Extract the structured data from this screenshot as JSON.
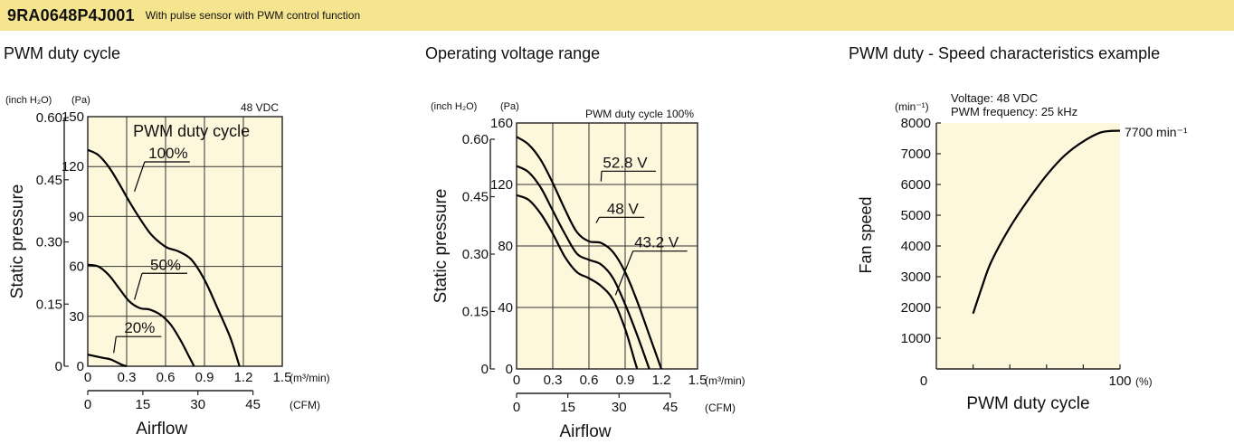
{
  "header": {
    "model": "9RA0648P4J001",
    "description": "With pulse sensor with PWM control function",
    "bg_color": "#f5e58e"
  },
  "panels": [
    {
      "title": "PWM duty cycle"
    },
    {
      "title": "Operating voltage range"
    },
    {
      "title": "PWM duty - Speed characteristics example"
    }
  ],
  "chart_data": [
    {
      "type": "line",
      "plot_bg": "#fdf7dc",
      "x_unit": "(m³/min)",
      "x2_unit": "(CFM)",
      "xlabel": "Airflow",
      "ylabel": "Static pressure",
      "y_unit": "(Pa)",
      "y2_unit": "(inch H₂O)",
      "note": "48 VDC",
      "legend_title": "PWM duty cycle",
      "xlim": [
        0,
        1.5
      ],
      "ylim": [
        0,
        150
      ],
      "x_ticks": [
        "0",
        "0.3",
        "0.6",
        "0.9",
        "1.2",
        "1.5"
      ],
      "x2_ticks": [
        {
          "cfm": 0,
          "label": "0"
        },
        {
          "cfm": 15,
          "label": "15"
        },
        {
          "cfm": 30,
          "label": "30"
        },
        {
          "cfm": 45,
          "label": "45"
        }
      ],
      "y_ticks": [
        {
          "v": 0,
          "label": "0"
        },
        {
          "v": 30,
          "label": "30"
        },
        {
          "v": 60,
          "label": "60"
        },
        {
          "v": 90,
          "label": "90"
        },
        {
          "v": 120,
          "label": "120"
        },
        {
          "v": 150,
          "label": "150"
        }
      ],
      "y2_ticks": [
        {
          "v": 0,
          "label": "0"
        },
        {
          "v": 37.35,
          "label": "0.15"
        },
        {
          "v": 74.7,
          "label": "0.30"
        },
        {
          "v": 112.05,
          "label": "0.45"
        },
        {
          "v": 149.4,
          "label": "0.60"
        }
      ],
      "series": [
        {
          "name": "100%",
          "label_at": [
            0.62,
            125
          ],
          "pointer_to": [
            0.36,
            105
          ],
          "points": [
            [
              0,
              130
            ],
            [
              0.08,
              127
            ],
            [
              0.16,
              120
            ],
            [
              0.24,
              110
            ],
            [
              0.32,
              99
            ],
            [
              0.4,
              89
            ],
            [
              0.48,
              80
            ],
            [
              0.56,
              74
            ],
            [
              0.62,
              71
            ],
            [
              0.7,
              69
            ],
            [
              0.8,
              64
            ],
            [
              0.9,
              52
            ],
            [
              1.0,
              35
            ],
            [
              1.1,
              17
            ],
            [
              1.17,
              0
            ]
          ]
        },
        {
          "name": "50%",
          "label_at": [
            0.6,
            58
          ],
          "pointer_to": [
            0.36,
            40
          ],
          "points": [
            [
              0,
              61
            ],
            [
              0.08,
              60
            ],
            [
              0.16,
              55
            ],
            [
              0.24,
              47
            ],
            [
              0.32,
              39
            ],
            [
              0.4,
              35
            ],
            [
              0.48,
              34
            ],
            [
              0.56,
              31
            ],
            [
              0.64,
              25
            ],
            [
              0.72,
              15
            ],
            [
              0.78,
              6
            ],
            [
              0.82,
              0
            ]
          ]
        },
        {
          "name": "20%",
          "label_at": [
            0.4,
            20
          ],
          "pointer_to": [
            0.2,
            8
          ],
          "points": [
            [
              0,
              7
            ],
            [
              0.06,
              6
            ],
            [
              0.12,
              5
            ],
            [
              0.18,
              4
            ],
            [
              0.26,
              1
            ],
            [
              0.3,
              0
            ]
          ]
        }
      ]
    },
    {
      "type": "line",
      "plot_bg": "#fdf7dc",
      "x_unit": "(m³/min)",
      "x2_unit": "(CFM)",
      "xlabel": "Airflow",
      "ylabel": "Static pressure",
      "y_unit": "(Pa)",
      "y2_unit": "(inch H₂O)",
      "note": "PWM duty cycle 100%",
      "xlim": [
        0,
        1.5
      ],
      "ylim": [
        0,
        160
      ],
      "x_ticks": [
        "0",
        "0.3",
        "0.6",
        "0.9",
        "1.2",
        "1.5"
      ],
      "x2_ticks": [
        {
          "cfm": 0,
          "label": "0"
        },
        {
          "cfm": 15,
          "label": "15"
        },
        {
          "cfm": 30,
          "label": "30"
        },
        {
          "cfm": 45,
          "label": "45"
        }
      ],
      "y_ticks": [
        {
          "v": 0,
          "label": "0"
        },
        {
          "v": 40,
          "label": "40"
        },
        {
          "v": 80,
          "label": "80"
        },
        {
          "v": 120,
          "label": "120"
        },
        {
          "v": 160,
          "label": "160"
        }
      ],
      "y2_ticks": [
        {
          "v": 0,
          "label": "0"
        },
        {
          "v": 37.35,
          "label": "0.15"
        },
        {
          "v": 74.7,
          "label": "0.30"
        },
        {
          "v": 112.05,
          "label": "0.45"
        },
        {
          "v": 149.4,
          "label": "0.60"
        }
      ],
      "series": [
        {
          "name": "52.8 V",
          "label_at": [
            0.9,
            131
          ],
          "pointer_to": [
            0.7,
            122
          ],
          "points": [
            [
              0,
              151
            ],
            [
              0.1,
              146
            ],
            [
              0.2,
              136
            ],
            [
              0.3,
              121
            ],
            [
              0.4,
              104
            ],
            [
              0.5,
              89
            ],
            [
              0.6,
              83
            ],
            [
              0.7,
              82
            ],
            [
              0.8,
              76
            ],
            [
              0.9,
              63
            ],
            [
              1.0,
              44
            ],
            [
              1.1,
              22
            ],
            [
              1.2,
              0
            ]
          ]
        },
        {
          "name": "48 V",
          "label_at": [
            0.88,
            101
          ],
          "pointer_to": [
            0.66,
            95
          ],
          "points": [
            [
              0,
              132
            ],
            [
              0.1,
              128
            ],
            [
              0.2,
              118
            ],
            [
              0.3,
              103
            ],
            [
              0.4,
              88
            ],
            [
              0.5,
              75
            ],
            [
              0.6,
              71
            ],
            [
              0.7,
              68
            ],
            [
              0.8,
              59
            ],
            [
              0.9,
              42
            ],
            [
              1.0,
              22
            ],
            [
              1.1,
              0
            ]
          ]
        },
        {
          "name": "43.2 V",
          "label_at": [
            1.16,
            79
          ],
          "pointer_to": [
            0.82,
            48
          ],
          "points": [
            [
              0,
              113
            ],
            [
              0.1,
              110
            ],
            [
              0.2,
              101
            ],
            [
              0.3,
              88
            ],
            [
              0.4,
              73
            ],
            [
              0.5,
              63
            ],
            [
              0.6,
              59
            ],
            [
              0.7,
              54
            ],
            [
              0.8,
              45
            ],
            [
              0.9,
              26
            ],
            [
              0.98,
              5
            ],
            [
              1.0,
              0
            ]
          ]
        }
      ]
    },
    {
      "type": "line",
      "plot_bg": "#fdf7dc",
      "xlabel": "PWM duty cycle",
      "ylabel": "Fan speed",
      "y_unit": "(min⁻¹)",
      "x_unit": "(%)",
      "note_lines": [
        "Voltage: 48 VDC",
        "PWM frequency: 25 kHz"
      ],
      "end_label": "7700 min⁻¹",
      "xlim": [
        0,
        100
      ],
      "ylim": [
        0,
        8000
      ],
      "x_ticks": [
        {
          "v": 0,
          "label": "0"
        },
        {
          "v": 100,
          "label": "100"
        }
      ],
      "y_ticks": [
        {
          "v": 1000,
          "label": "1000"
        },
        {
          "v": 2000,
          "label": "2000"
        },
        {
          "v": 3000,
          "label": "3000"
        },
        {
          "v": 4000,
          "label": "4000"
        },
        {
          "v": 5000,
          "label": "5000"
        },
        {
          "v": 6000,
          "label": "6000"
        },
        {
          "v": 7000,
          "label": "7000"
        },
        {
          "v": 8000,
          "label": "8000"
        }
      ],
      "series": [
        {
          "points": [
            [
              20,
              1800
            ],
            [
              25,
              2700
            ],
            [
              30,
              3500
            ],
            [
              40,
              4600
            ],
            [
              50,
              5500
            ],
            [
              60,
              6300
            ],
            [
              70,
              6950
            ],
            [
              80,
              7400
            ],
            [
              90,
              7700
            ],
            [
              100,
              7750
            ]
          ]
        }
      ]
    }
  ]
}
